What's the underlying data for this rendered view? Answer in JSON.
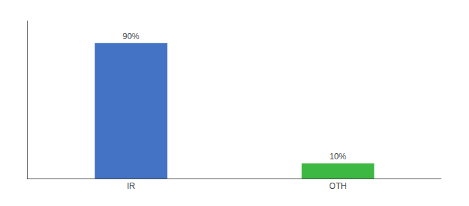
{
  "chart_data": {
    "type": "bar",
    "categories": [
      "IR",
      "OTH"
    ],
    "values": [
      90,
      10
    ],
    "value_labels": [
      "90%",
      "10%"
    ],
    "colors": [
      "#4472c4",
      "#3cb843"
    ],
    "ylim": [
      0,
      105
    ],
    "grid": false,
    "data_labels": true,
    "tick_labels": "x"
  }
}
